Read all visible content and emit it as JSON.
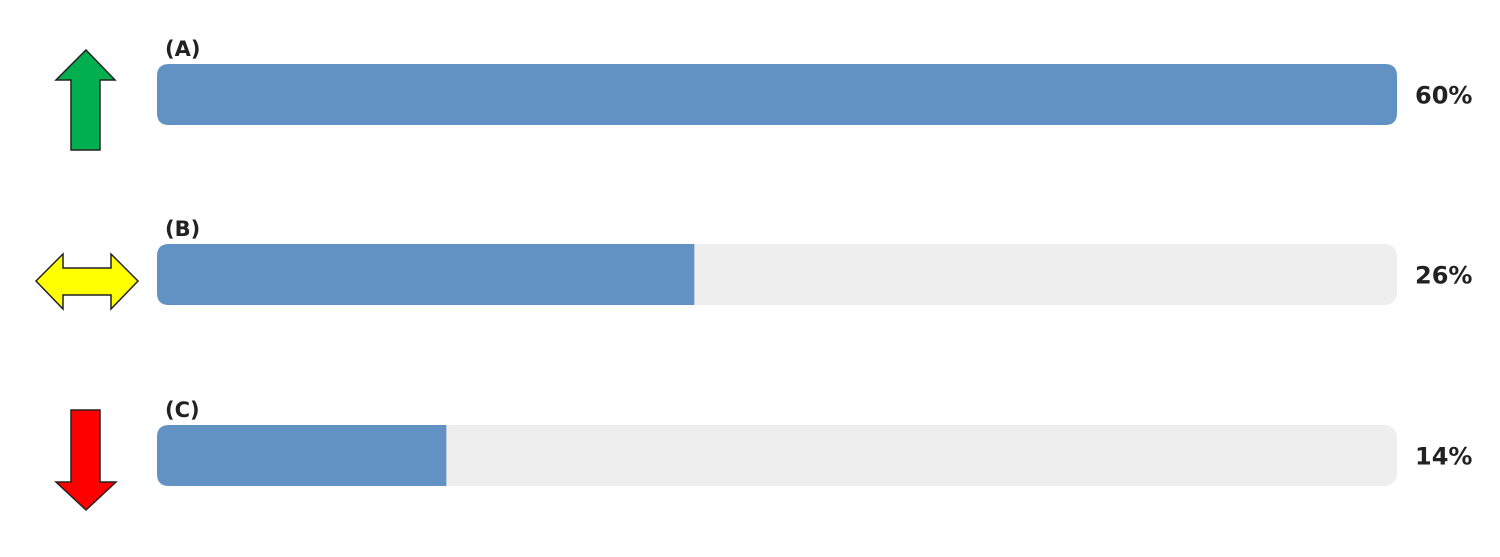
{
  "chart_data": {
    "type": "bar",
    "orientation": "horizontal",
    "title": "",
    "xlabel": "",
    "ylabel": "",
    "xlim": [
      0,
      60
    ],
    "grid": false,
    "legend": "none",
    "categories": [
      "(A)",
      "(B)",
      "(C)"
    ],
    "values": [
      60,
      26,
      14
    ],
    "value_labels": [
      "60%",
      "26%",
      "14%"
    ],
    "trend_icons": [
      "up-arrow-icon",
      "left-right-arrow-icon",
      "down-arrow-icon"
    ],
    "colors": {
      "bar": "#6192c3",
      "track": "#eeeeee",
      "up_arrow": "#00b050",
      "neutral_arrow": "#ffff00",
      "down_arrow": "#ff0000",
      "arrow_outline": "#222222"
    }
  }
}
